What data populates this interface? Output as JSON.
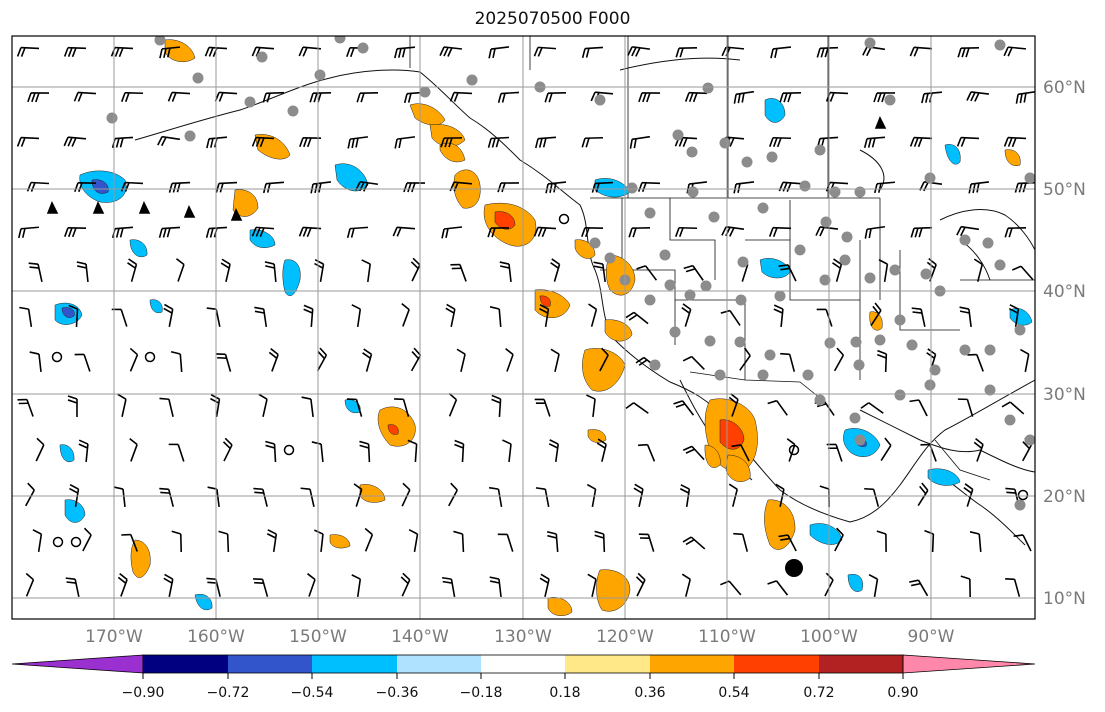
{
  "title": "2025070500 F000",
  "longitude_labels": [
    "170°W",
    "160°W",
    "150°W",
    "140°W",
    "130°W",
    "120°W",
    "110°W",
    "100°W",
    "90°W"
  ],
  "latitude_labels": [
    "60°N",
    "50°N",
    "40°N",
    "30°N",
    "20°N",
    "10°N"
  ],
  "colorbar": {
    "ticks": [
      "−0.90",
      "−0.72",
      "−0.54",
      "−0.36",
      "−0.18",
      "0.18",
      "0.36",
      "0.54",
      "0.72",
      "0.90"
    ],
    "colors": [
      "#9b30d0",
      "#000080",
      "#3355cc",
      "#00bfff",
      "#aee2ff",
      "#ffffff",
      "#ffe888",
      "#ffa500",
      "#ff4000",
      "#b22222",
      "#ff88aa"
    ]
  },
  "chart_data": {
    "type": "map",
    "title": "2025070500 F000",
    "lon_range": [
      -180,
      -80
    ],
    "lat_range": [
      8,
      65
    ],
    "colorbar_levels": [
      -0.9,
      -0.72,
      -0.54,
      -0.36,
      -0.18,
      0.18,
      0.36,
      0.54,
      0.72,
      0.9
    ],
    "gridlines": true
  }
}
